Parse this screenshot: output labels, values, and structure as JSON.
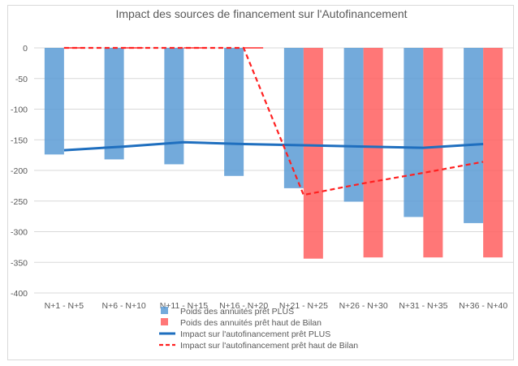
{
  "chart_data": {
    "type": "bar",
    "title": "Impact des sources de financement sur l'Autofinancement",
    "categories": [
      "N+1 - N+5",
      "N+6 - N+10",
      "N+11 - N+15",
      "N+16 - N+20",
      "N+21 - N+25",
      "N+26 - N+30",
      "N+31 - N+35",
      "N+36 - N+40"
    ],
    "ylim": [
      -400,
      0
    ],
    "yticks": [
      0,
      -50,
      -100,
      -150,
      -200,
      -250,
      -300,
      -350,
      -400
    ],
    "grid": true,
    "legend_position": "bottom",
    "series": [
      {
        "name": "Poids des annuités prêt PLUS",
        "kind": "bar",
        "color": "#5b9bd5",
        "values": [
          -174,
          -182,
          -190,
          -209,
          -229,
          -251,
          -276,
          -286
        ]
      },
      {
        "name": "Poids des annuités prêt haut de Bilan",
        "kind": "bar",
        "color": "#ff5f5f",
        "values": [
          0,
          0,
          0,
          0,
          -344,
          -342,
          -342,
          -342
        ]
      },
      {
        "name": "Impact sur l'autofinancement prêt PLUS",
        "kind": "line",
        "style": "solid",
        "color": "#1f6fbf",
        "values": [
          -167,
          -161,
          -154,
          -157,
          -159,
          -161,
          -163,
          -157
        ]
      },
      {
        "name": "Impact sur l'autofinancement prêt haut de Bilan",
        "kind": "line",
        "style": "dashed",
        "color": "#ff2020",
        "values": [
          0,
          0,
          0,
          0,
          -240,
          -221,
          -204,
          -186
        ]
      }
    ]
  }
}
